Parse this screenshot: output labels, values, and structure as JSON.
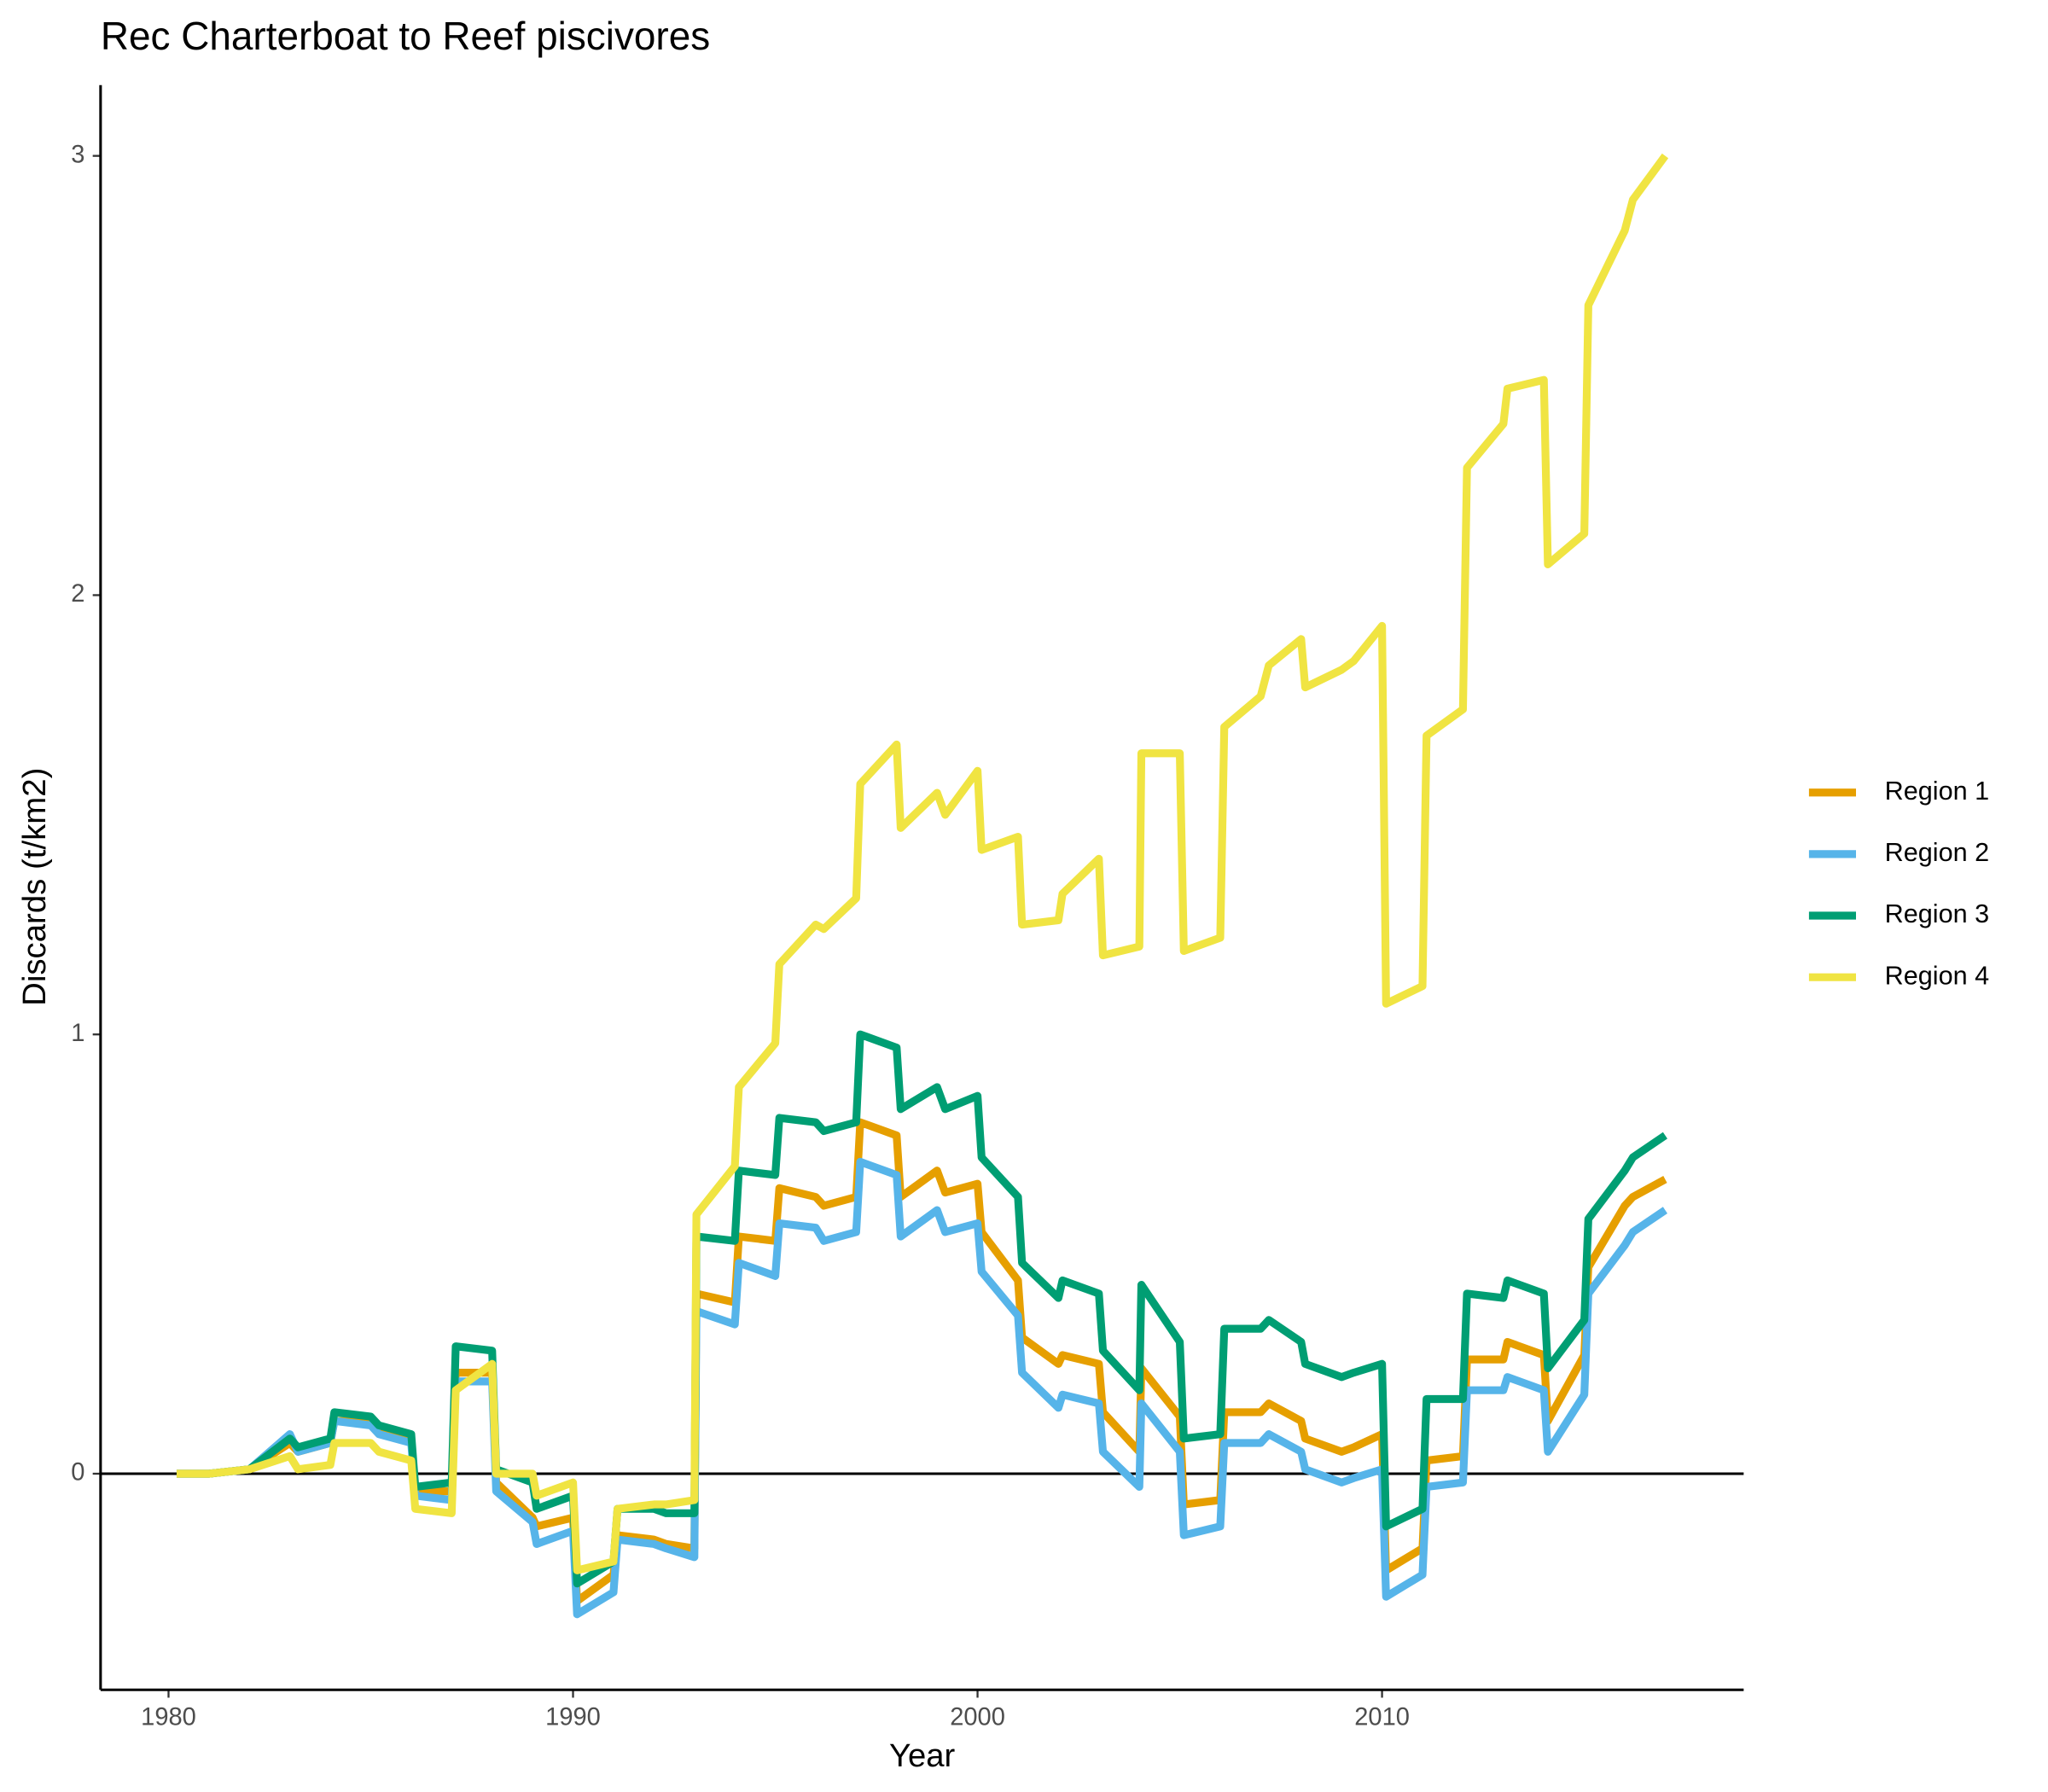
{
  "chart_data": {
    "type": "line",
    "title": "Rec Charterboat to Reef piscivores",
    "x_label": "Year",
    "y_label": "Discards (t/km2)",
    "x": [
      1980.2,
      1981,
      1982,
      1983,
      1983.2,
      1984,
      1984.1,
      1985,
      1985.2,
      1986,
      1986.1,
      1987,
      1987.1,
      1988,
      1988.1,
      1989,
      1989.1,
      1990,
      1990.1,
      1991,
      1991.1,
      1992,
      1992.3,
      1993,
      1993.05,
      1994,
      1994.1,
      1995,
      1995.1,
      1996,
      1996.2,
      1997,
      1997.1,
      1998,
      1998.1,
      1999,
      1999.2,
      2000,
      2000.1,
      2001,
      2001.1,
      2002,
      2002.1,
      2003,
      2003.1,
      2004,
      2004.05,
      2005,
      2005.1,
      2006,
      2006.1,
      2007,
      2007.2,
      2008,
      2008.1,
      2009,
      2009.3,
      2010,
      2010.1,
      2011,
      2011.1,
      2012,
      2012.1,
      2013,
      2013.1,
      2014,
      2014.1,
      2015,
      2015.1,
      2016,
      2016.2,
      2017
    ],
    "series": [
      {
        "name": "Region 1",
        "color": "#e69f00",
        "values": [
          0,
          0,
          0.01,
          0.07,
          0.05,
          0.07,
          0.12,
          0.12,
          0.1,
          0.08,
          -0.04,
          -0.04,
          0.23,
          0.23,
          -0.02,
          -0.1,
          -0.12,
          -0.1,
          -0.29,
          -0.23,
          -0.14,
          -0.15,
          -0.16,
          -0.17,
          0.41,
          0.39,
          0.54,
          0.53,
          0.65,
          0.63,
          0.61,
          0.63,
          0.8,
          0.77,
          0.63,
          0.69,
          0.64,
          0.66,
          0.55,
          0.44,
          0.31,
          0.25,
          0.27,
          0.25,
          0.14,
          0.05,
          0.24,
          0.13,
          -0.07,
          -0.06,
          0.14,
          0.14,
          0.16,
          0.12,
          0.08,
          0.05,
          0.06,
          0.09,
          -0.22,
          -0.17,
          0.03,
          0.04,
          0.26,
          0.26,
          0.3,
          0.27,
          0.12,
          0.27,
          0.47,
          0.61,
          0.63,
          0.67
        ]
      },
      {
        "name": "Region 2",
        "color": "#56b4e9",
        "values": [
          0,
          0,
          0.01,
          0.09,
          0.05,
          0.07,
          0.12,
          0.11,
          0.09,
          0.07,
          -0.05,
          -0.06,
          0.21,
          0.21,
          -0.04,
          -0.11,
          -0.16,
          -0.13,
          -0.32,
          -0.27,
          -0.15,
          -0.16,
          -0.17,
          -0.19,
          0.37,
          0.34,
          0.48,
          0.45,
          0.57,
          0.56,
          0.53,
          0.55,
          0.71,
          0.68,
          0.54,
          0.6,
          0.55,
          0.57,
          0.46,
          0.36,
          0.23,
          0.15,
          0.18,
          0.16,
          0.05,
          -0.03,
          0.16,
          0.05,
          -0.14,
          -0.12,
          0.07,
          0.07,
          0.09,
          0.05,
          0.01,
          -0.02,
          -0.01,
          0.01,
          -0.28,
          -0.23,
          -0.03,
          -0.02,
          0.19,
          0.19,
          0.22,
          0.19,
          0.05,
          0.18,
          0.41,
          0.52,
          0.55,
          0.6
        ]
      },
      {
        "name": "Region 3",
        "color": "#009e73",
        "values": [
          0,
          0,
          0.01,
          0.08,
          0.06,
          0.08,
          0.14,
          0.13,
          0.11,
          0.09,
          -0.03,
          -0.02,
          0.29,
          0.28,
          0.01,
          -0.02,
          -0.08,
          -0.05,
          -0.25,
          -0.2,
          -0.08,
          -0.08,
          -0.09,
          -0.09,
          0.54,
          0.53,
          0.69,
          0.68,
          0.81,
          0.8,
          0.78,
          0.8,
          1.0,
          0.97,
          0.83,
          0.88,
          0.83,
          0.86,
          0.72,
          0.63,
          0.48,
          0.4,
          0.44,
          0.41,
          0.28,
          0.19,
          0.43,
          0.3,
          0.08,
          0.09,
          0.33,
          0.33,
          0.35,
          0.3,
          0.25,
          0.22,
          0.23,
          0.25,
          -0.12,
          -0.08,
          0.17,
          0.17,
          0.41,
          0.4,
          0.44,
          0.41,
          0.24,
          0.35,
          0.58,
          0.69,
          0.72,
          0.77
        ]
      },
      {
        "name": "Region 4",
        "color": "#f0e442",
        "values": [
          0,
          0,
          0.01,
          0.04,
          0.01,
          0.02,
          0.07,
          0.07,
          0.05,
          0.03,
          -0.08,
          -0.09,
          0.19,
          0.25,
          0.0,
          0.0,
          -0.05,
          -0.02,
          -0.22,
          -0.2,
          -0.08,
          -0.07,
          -0.07,
          -0.06,
          0.59,
          0.7,
          0.88,
          0.98,
          1.16,
          1.25,
          1.24,
          1.31,
          1.57,
          1.66,
          1.47,
          1.55,
          1.5,
          1.6,
          1.42,
          1.45,
          1.25,
          1.26,
          1.32,
          1.4,
          1.18,
          1.2,
          1.64,
          1.64,
          1.19,
          1.22,
          1.7,
          1.77,
          1.84,
          1.9,
          1.79,
          1.83,
          1.85,
          1.93,
          1.07,
          1.11,
          1.68,
          1.74,
          2.29,
          2.39,
          2.47,
          2.49,
          2.07,
          2.14,
          2.66,
          2.83,
          2.9,
          3.0
        ]
      }
    ],
    "xlim": [
      1978.32,
      2018.94
    ],
    "xticks": [
      1980,
      1990,
      2000,
      2010
    ],
    "ylim": [
      -0.492,
      3.161
    ],
    "yticks": [
      0,
      1,
      2,
      3
    ],
    "reference_line": 0,
    "legend": "right"
  }
}
